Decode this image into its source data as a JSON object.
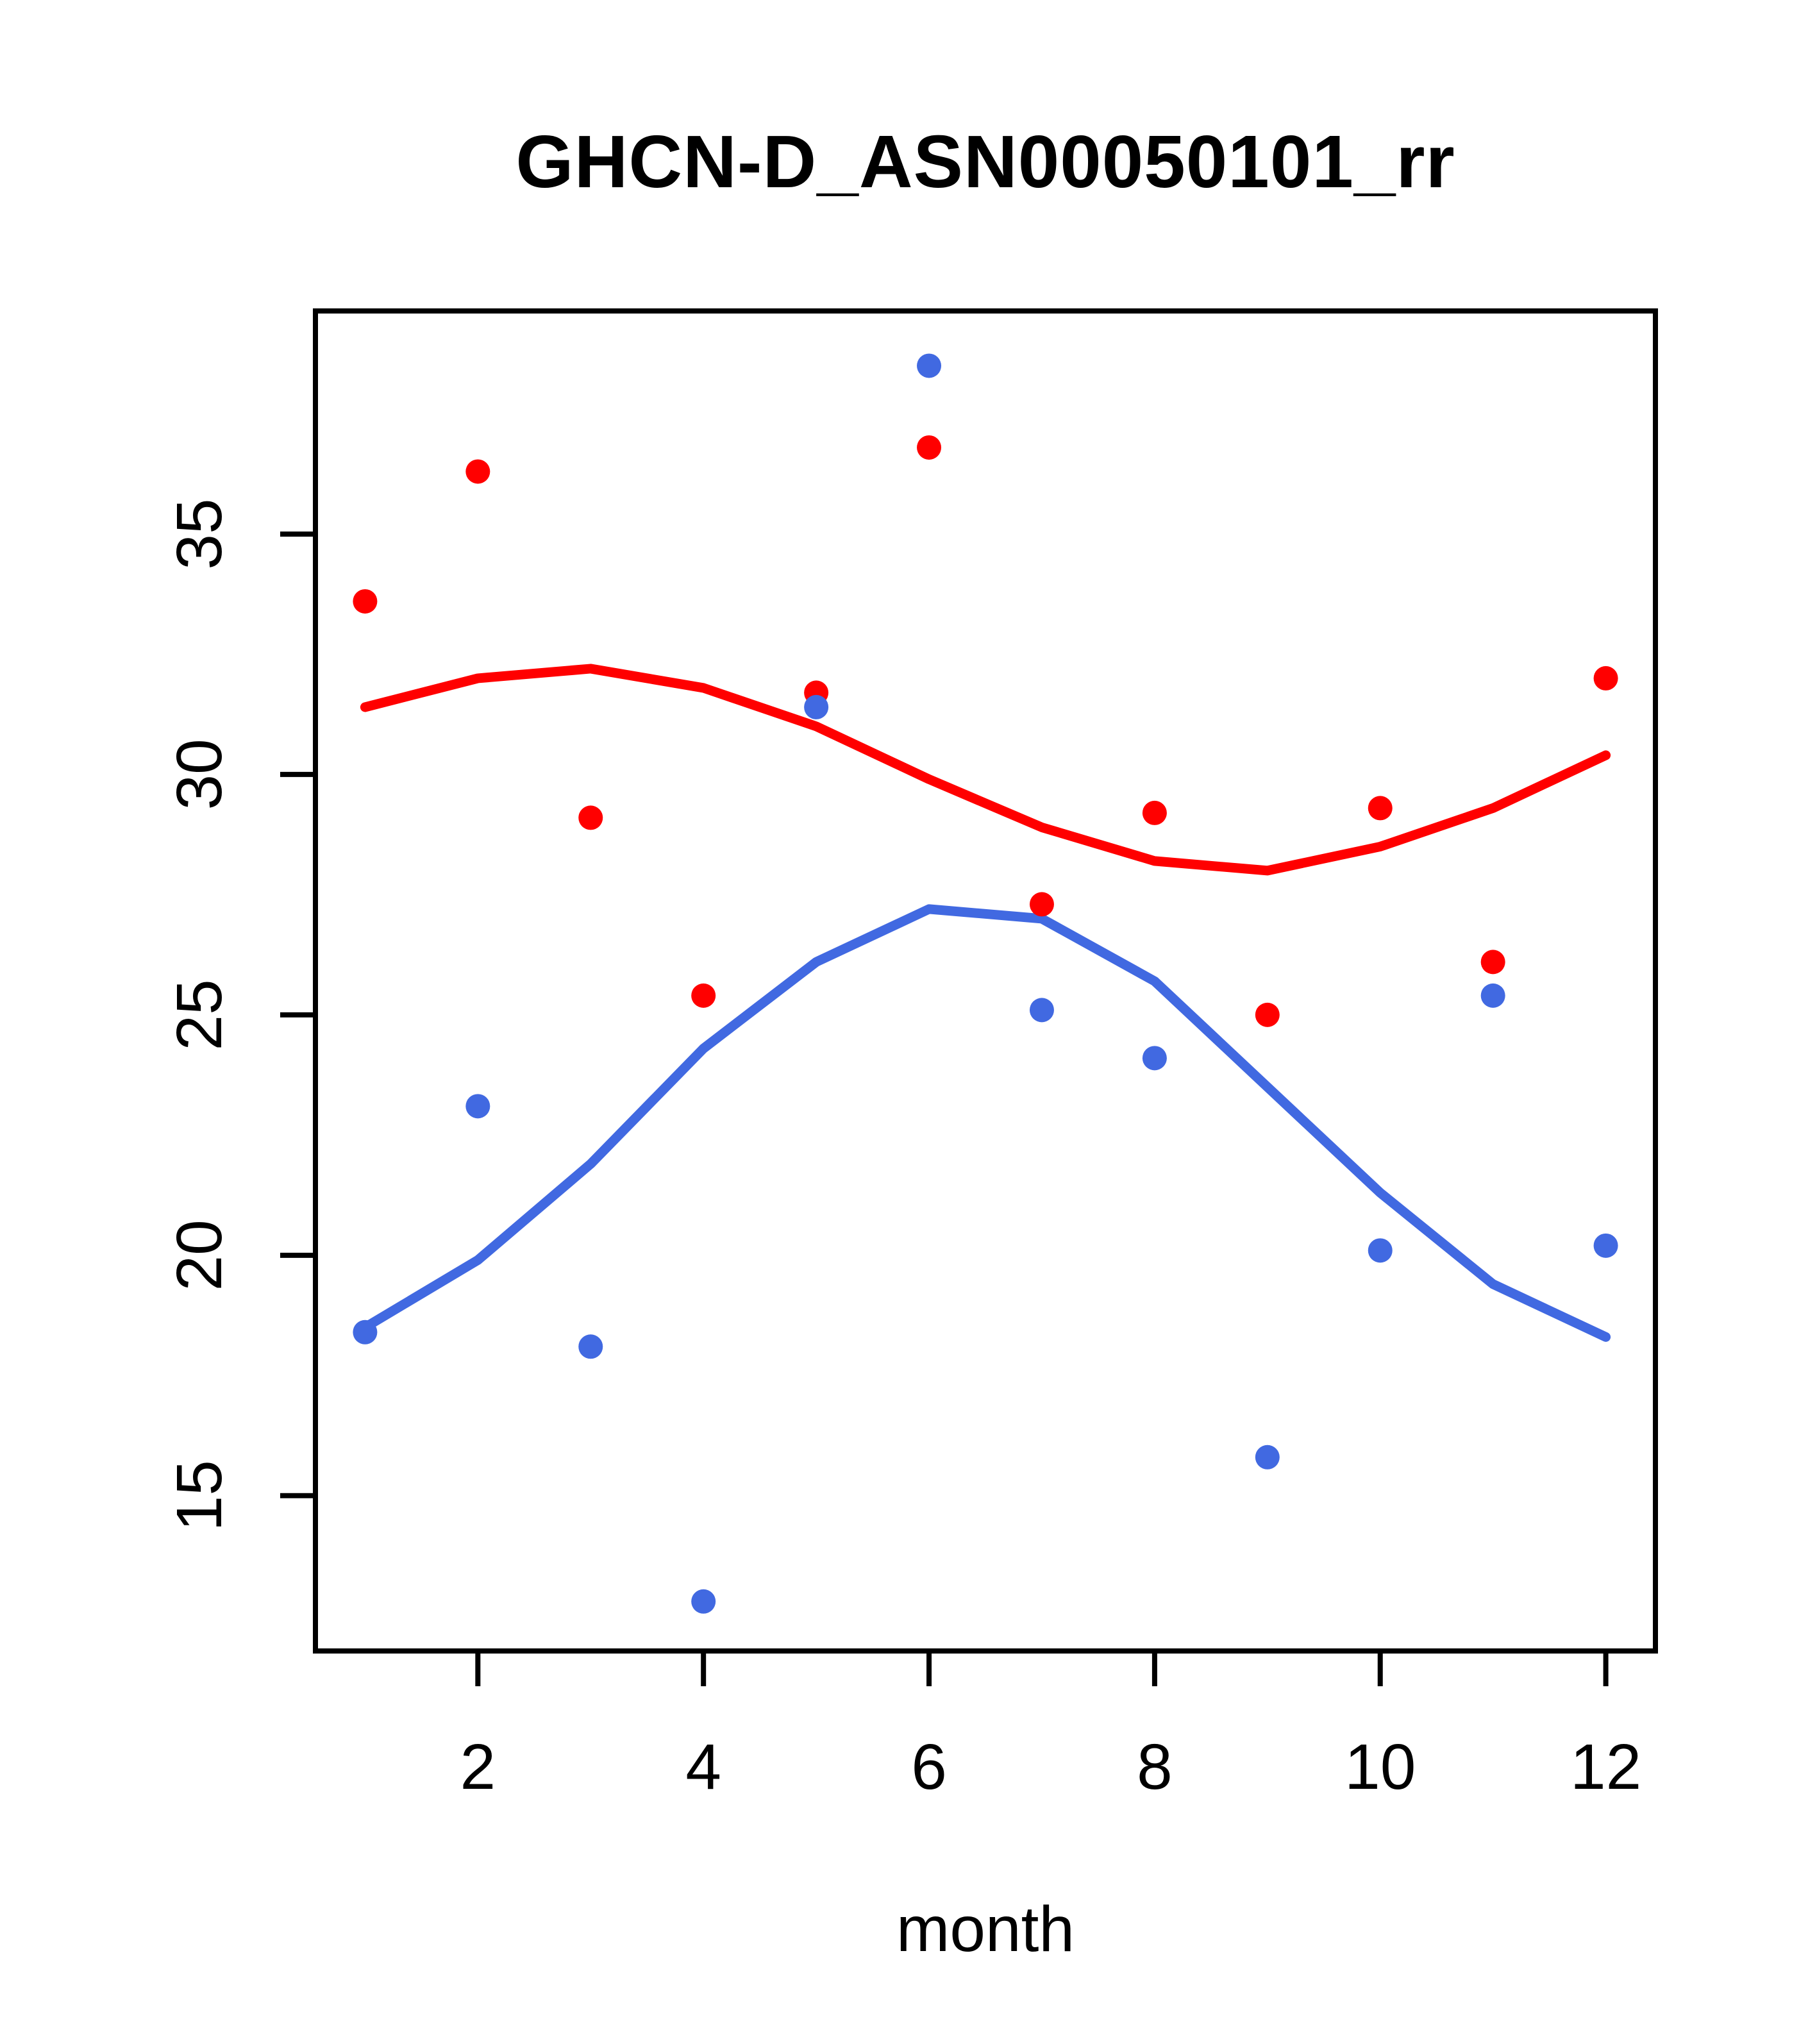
{
  "chart_data": {
    "type": "scatter",
    "title": "GHCN-D_ASN00050101_rr",
    "xlabel": "month",
    "ylabel": "",
    "x": [
      1,
      2,
      3,
      4,
      5,
      6,
      7,
      8,
      9,
      10,
      11,
      12
    ],
    "series": [
      {
        "name": "red-points",
        "kind": "points",
        "color": "#FF0000",
        "values": [
          33.6,
          36.3,
          29.1,
          25.4,
          31.7,
          36.8,
          27.3,
          29.2,
          25.0,
          29.3,
          26.1,
          32.0
        ]
      },
      {
        "name": "blue-points",
        "kind": "points",
        "color": "#4169E1",
        "values": [
          18.4,
          23.1,
          18.1,
          12.8,
          31.4,
          38.5,
          25.1,
          24.1,
          15.8,
          20.1,
          25.4,
          20.2
        ]
      },
      {
        "name": "red-loess-line",
        "kind": "line",
        "color": "#FF0000",
        "values": [
          31.4,
          32.0,
          32.2,
          31.8,
          31.0,
          29.9,
          28.9,
          28.2,
          28.0,
          28.5,
          29.3,
          30.4
        ]
      },
      {
        "name": "blue-loess-line",
        "kind": "line",
        "color": "#4169E1",
        "values": [
          18.5,
          19.9,
          21.9,
          24.3,
          26.1,
          27.2,
          27.0,
          25.7,
          23.5,
          21.3,
          19.4,
          18.3
        ]
      }
    ],
    "x_ticks": [
      "2",
      "4",
      "6",
      "8",
      "10",
      "12"
    ],
    "y_ticks": [
      "15",
      "20",
      "25",
      "30",
      "35"
    ],
    "xlim": [
      0.56,
      12.44
    ],
    "ylim": [
      11.77,
      39.64
    ],
    "grid": false,
    "legend": null,
    "axis_color": "#000000",
    "point_radius": 19,
    "line_width": 15
  }
}
